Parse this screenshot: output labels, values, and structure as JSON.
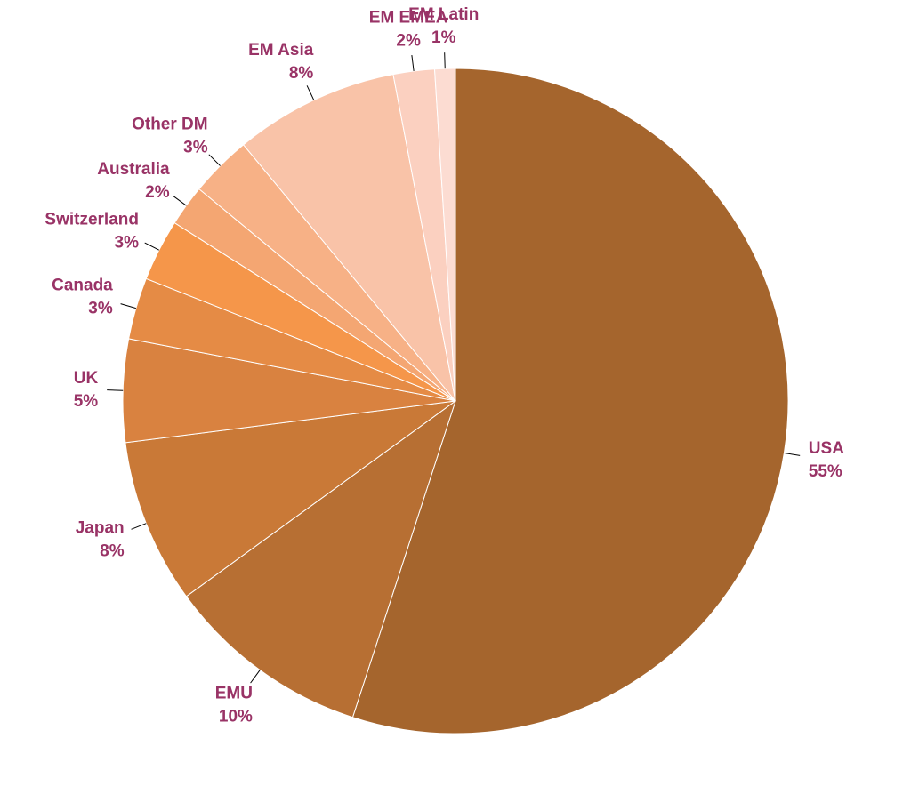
{
  "chart_data": {
    "type": "pie",
    "categories": [
      "USA",
      "EMU",
      "Japan",
      "UK",
      "Canada",
      "Switzerland",
      "Australia",
      "Other DM",
      "EM Asia",
      "EM EMEA",
      "EM Latin"
    ],
    "values": [
      55,
      10,
      8,
      5,
      3,
      3,
      2,
      3,
      8,
      2,
      1
    ],
    "value_labels": [
      "55%",
      "10%",
      "8%",
      "5%",
      "3%",
      "3%",
      "2%",
      "3%",
      "8%",
      "2%",
      "1%"
    ],
    "colors": [
      "#a5652d",
      "#b76f33",
      "#c97937",
      "#d98240",
      "#e58b45",
      "#f5964a",
      "#f4a672",
      "#f7b186",
      "#f9c3a8",
      "#fbd0c0",
      "#fcdcd2"
    ]
  }
}
